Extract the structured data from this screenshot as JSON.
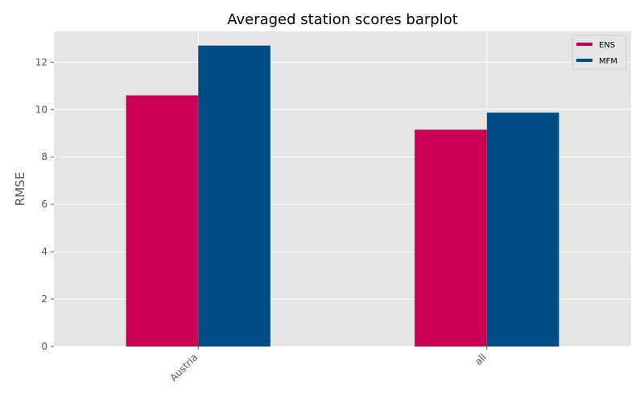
{
  "chart_data": {
    "type": "bar",
    "title": "Averaged station scores barplot",
    "xlabel": "",
    "ylabel": "RMSE",
    "categories": [
      "Austria",
      "all"
    ],
    "series": [
      {
        "name": "ENS",
        "color": "#C90055",
        "values": [
          10.6,
          9.15
        ]
      },
      {
        "name": "MFM",
        "color": "#004C87",
        "values": [
          12.7,
          9.87
        ]
      }
    ],
    "ylim": [
      0,
      13.3
    ],
    "yticks": [
      0,
      2,
      4,
      6,
      8,
      10,
      12
    ],
    "grid": true,
    "legend_position": "top-right",
    "background_color": "#E5E5E5",
    "grid_color": "#FFFFFF"
  }
}
